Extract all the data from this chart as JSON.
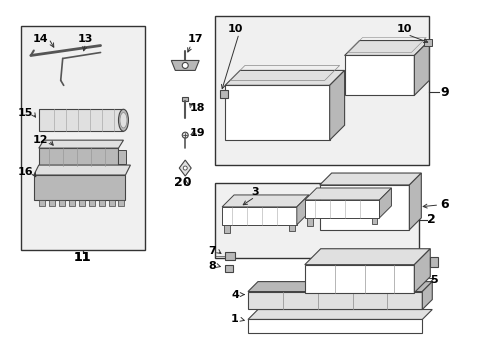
{
  "bg_color": "#ffffff",
  "diagram_bg": "#f0f0f0",
  "box_fill": "#e8e8e8",
  "line_color": "#333333",
  "part_stroke": "#444444",
  "part_fill": "#d8d8d8",
  "part_fill2": "#c0c0c0",
  "label_color": "#000000",
  "figsize": [
    4.89,
    3.6
  ],
  "dpi": 100
}
